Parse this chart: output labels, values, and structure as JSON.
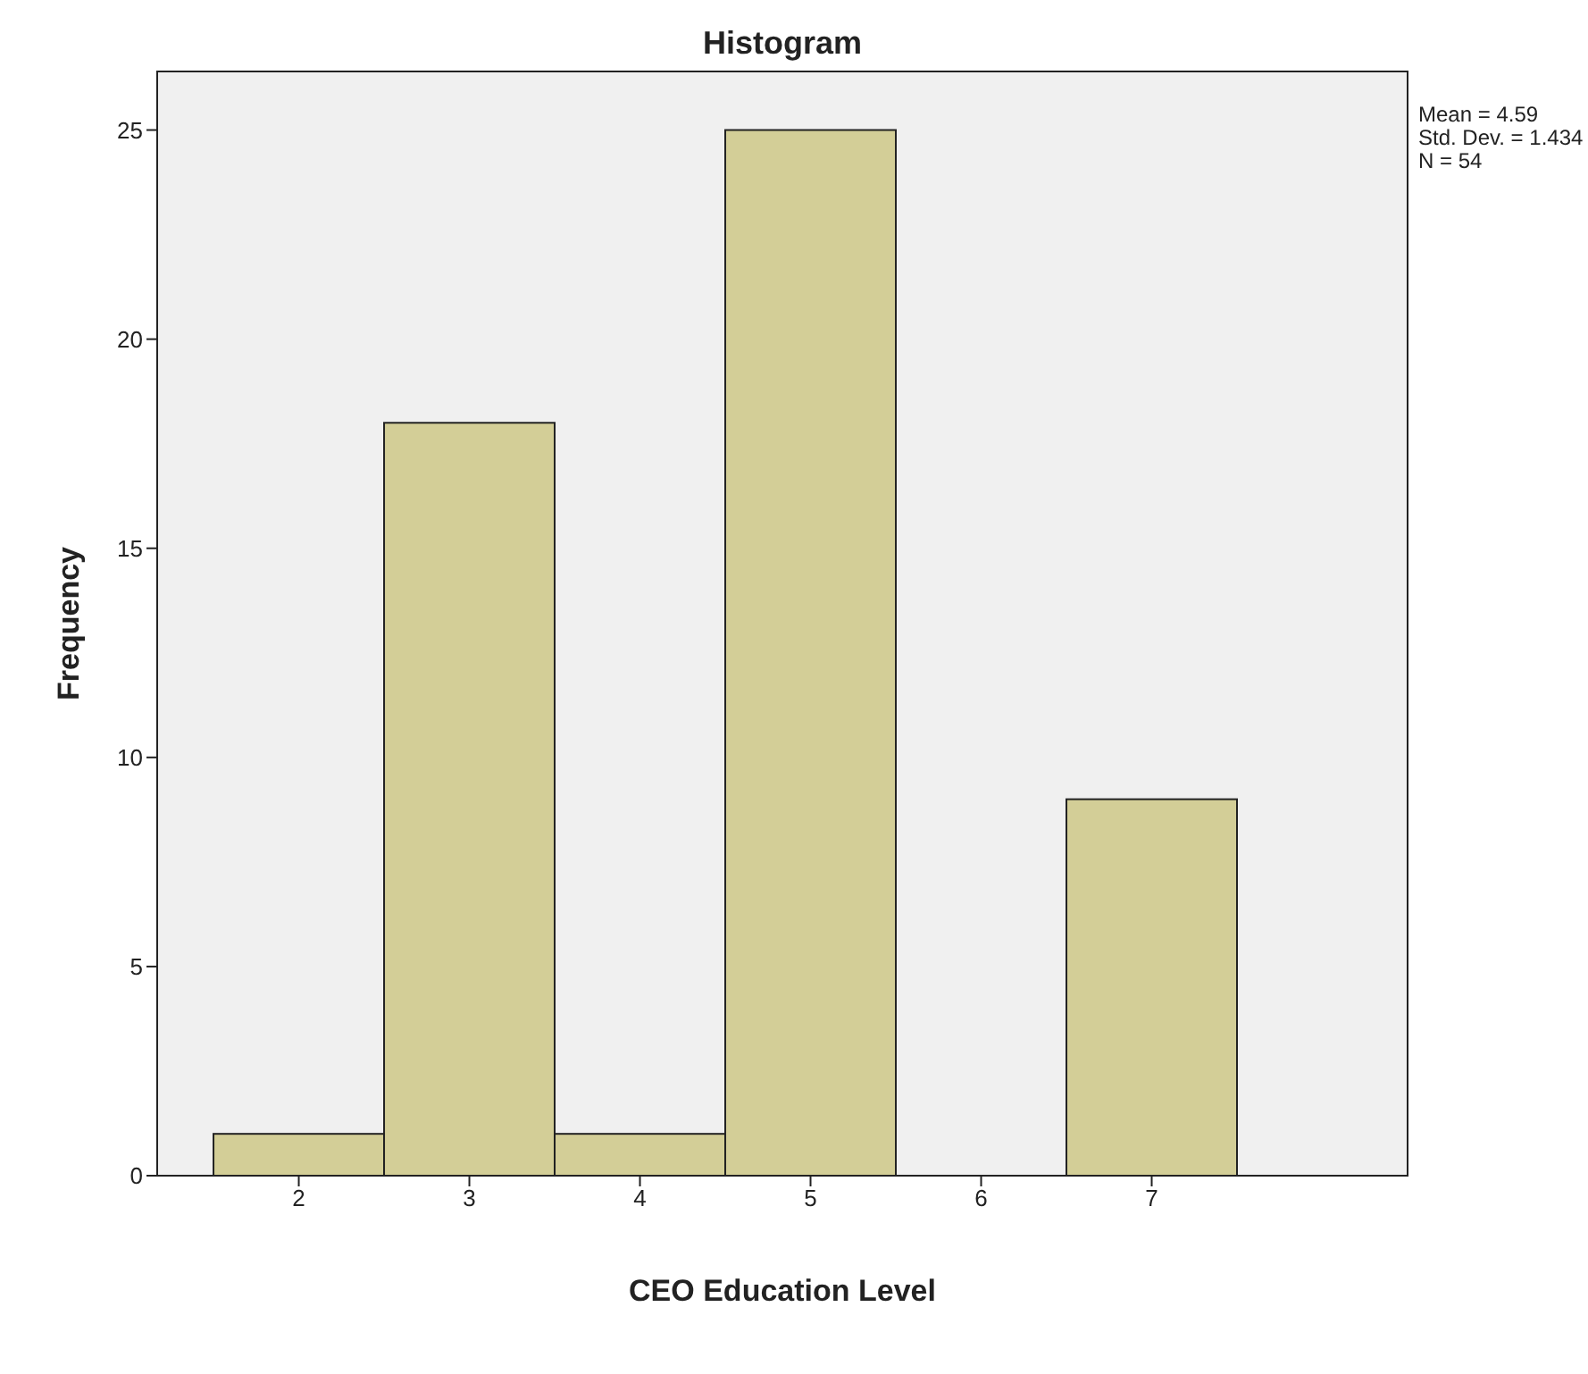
{
  "chart_data": {
    "type": "histogram",
    "title": "Histogram",
    "xlabel": "CEO Education Level",
    "ylabel": "Frequency",
    "bins": [
      1.5,
      2.5,
      3.5,
      4.5,
      5.5,
      6.5,
      7.5
    ],
    "values": [
      1,
      18,
      1,
      25,
      0,
      9
    ],
    "color": "#d3ce97",
    "xlim": [
      1.17,
      8.5
    ],
    "xticks": [
      2,
      3,
      4,
      5,
      6,
      7
    ],
    "ylim": [
      0,
      26.4
    ],
    "yticks": [
      0,
      5,
      10,
      15,
      20,
      25
    ],
    "grid": false,
    "annotations": [
      "Mean = 4.59",
      "Std. Dev. = 1.434",
      "N = 54"
    ]
  }
}
